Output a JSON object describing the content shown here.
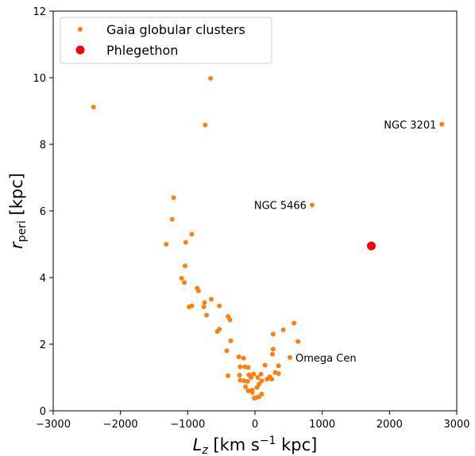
{
  "chart_data": {
    "type": "scatter",
    "xlabel_parts": [
      "L",
      "z",
      " [km s",
      "−1",
      " kpc]"
    ],
    "ylabel_parts": [
      "r",
      "peri",
      " [kpc]"
    ],
    "xlim": [
      -3000,
      3000
    ],
    "ylim": [
      0,
      12
    ],
    "x_ticks": [
      -3000,
      -2000,
      -1000,
      0,
      1000,
      2000,
      3000
    ],
    "x_tick_labels": [
      "−3000",
      "−2000",
      "−1000",
      "0",
      "1000",
      "2000",
      "3000"
    ],
    "y_ticks": [
      0,
      2,
      4,
      6,
      8,
      10,
      12
    ],
    "y_tick_labels": [
      "0",
      "2",
      "4",
      "6",
      "8",
      "10",
      "12"
    ],
    "grid": false,
    "legend_position": "top-left",
    "series": [
      {
        "name": "Gaia globular clusters",
        "color": "#ff7f0e",
        "marker": "small-circle",
        "points": [
          [
            -2400,
            9.12
          ],
          [
            -660,
            9.98
          ],
          [
            -740,
            8.58
          ],
          [
            2780,
            8.6
          ],
          [
            850,
            6.18
          ],
          [
            -1210,
            6.4
          ],
          [
            -1230,
            5.75
          ],
          [
            -1320,
            5.0
          ],
          [
            -1030,
            5.06
          ],
          [
            -940,
            5.3
          ],
          [
            -1040,
            4.35
          ],
          [
            -1090,
            3.98
          ],
          [
            -1050,
            3.85
          ],
          [
            -840,
            3.6
          ],
          [
            -860,
            3.68
          ],
          [
            -650,
            3.35
          ],
          [
            -750,
            3.25
          ],
          [
            -760,
            3.12
          ],
          [
            -980,
            3.12
          ],
          [
            -940,
            3.15
          ],
          [
            -530,
            3.15
          ],
          [
            -720,
            2.87
          ],
          [
            -400,
            2.83
          ],
          [
            -370,
            2.73
          ],
          [
            -560,
            2.38
          ],
          [
            -530,
            2.45
          ],
          [
            -360,
            2.1
          ],
          [
            -420,
            1.8
          ],
          [
            -240,
            1.62
          ],
          [
            -170,
            1.58
          ],
          [
            -220,
            1.32
          ],
          [
            -150,
            1.32
          ],
          [
            -100,
            1.3
          ],
          [
            -400,
            1.05
          ],
          [
            -230,
            1.07
          ],
          [
            -20,
            1.1
          ],
          [
            -60,
            1.0
          ],
          [
            -90,
            1.08
          ],
          [
            40,
            1.0
          ],
          [
            90,
            1.1
          ],
          [
            150,
            1.37
          ],
          [
            220,
            1.02
          ],
          [
            250,
            0.95
          ],
          [
            300,
            1.15
          ],
          [
            350,
            1.35
          ],
          [
            -220,
            0.92
          ],
          [
            -160,
            0.9
          ],
          [
            -110,
            0.88
          ],
          [
            -140,
            0.72
          ],
          [
            -100,
            0.6
          ],
          [
            -40,
            0.55
          ],
          [
            -10,
            0.38
          ],
          [
            20,
            0.4
          ],
          [
            60,
            0.42
          ],
          [
            30,
            0.7
          ],
          [
            60,
            0.8
          ],
          [
            100,
            0.9
          ],
          [
            180,
            0.95
          ],
          [
            100,
            0.5
          ],
          [
            -40,
            0.62
          ],
          [
            260,
            1.7
          ],
          [
            270,
            1.85
          ],
          [
            270,
            2.3
          ],
          [
            350,
            1.12
          ],
          [
            420,
            2.43
          ],
          [
            580,
            2.63
          ],
          [
            640,
            2.08
          ],
          [
            520,
            1.6
          ]
        ]
      },
      {
        "name": "Phlegethon",
        "color": "#ff0000",
        "marker": "large-circle",
        "points": [
          [
            1730,
            4.95
          ]
        ]
      }
    ],
    "annotations": [
      {
        "text": "NGC 3201",
        "x": 2780,
        "y": 8.6,
        "anchor": "end"
      },
      {
        "text": "NGC 5466",
        "x": 850,
        "y": 6.18,
        "anchor": "end"
      },
      {
        "text": "Omega Cen",
        "x": 520,
        "y": 1.6,
        "anchor": "start"
      }
    ]
  }
}
